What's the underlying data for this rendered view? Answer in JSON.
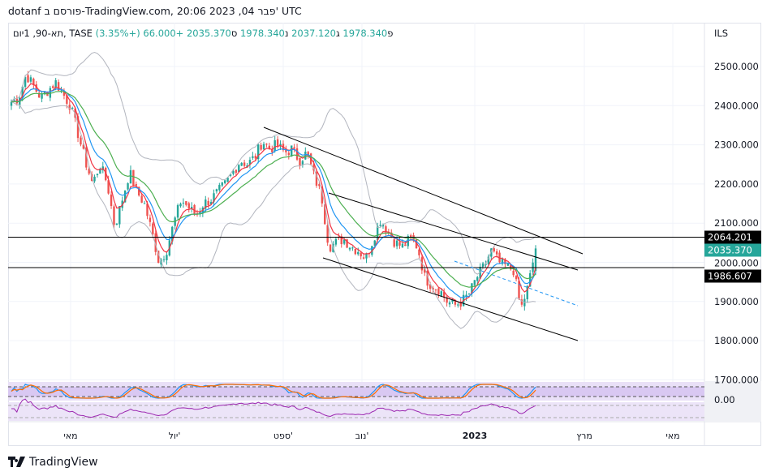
{
  "header": {
    "published": "dotanf פורסם ב-TradingView.com, 20:06 2023 ,04 פבר' UTC"
  },
  "legend": {
    "symbol": "תא-90, 1יום, TASE",
    "open_label": "פ",
    "open": "1978.340",
    "high_label": "ג",
    "high": "2037.120",
    "low_label": "נ",
    "low": "1978.340",
    "close_label": "ס",
    "close": "2035.370",
    "change": "+66.000 (+3.35%)"
  },
  "currency": "ILS",
  "colors": {
    "up": "#26a69a",
    "down": "#ef5350",
    "ema_fast": "#f23645",
    "ema_mid": "#2196f3",
    "ema_slow": "#4caf50",
    "bands": "#b2b5be",
    "stoch_k": "#2196f3",
    "stoch_d": "#ff6d00",
    "rsi": "#9c27b0"
  },
  "chart_data": {
    "type": "candlestick",
    "title": "TA-90, 1D, TASE",
    "ylim": [
      1690,
      2600
    ],
    "y_ticks": [
      "2500.000",
      "2400.000",
      "2300.000",
      "2200.000",
      "2100.000",
      "2000.000",
      "1900.000",
      "1800.000",
      "1700.000"
    ],
    "y_tick_values": [
      2500,
      2400,
      2300,
      2200,
      2100,
      2000,
      1900,
      1800,
      1700
    ],
    "x_ticks": [
      "מאי",
      "יול'",
      "ספט'",
      "נוב'",
      "2023",
      "מרץ",
      "מאי"
    ],
    "close_path": [
      2410,
      2420,
      2480,
      2450,
      2420,
      2440,
      2460,
      2430,
      2400,
      2330,
      2260,
      2200,
      2250,
      2200,
      2090,
      2160,
      2230,
      2180,
      2150,
      2080,
      2000,
      2030,
      2100,
      2160,
      2140,
      2120,
      2150,
      2160,
      2180,
      2200,
      2230,
      2260,
      2250,
      2270,
      2310,
      2290,
      2300,
      2280,
      2290,
      2260,
      2280,
      2220,
      2170,
      2040,
      2050,
      2060,
      2040,
      2030,
      2010,
      2060,
      2110,
      2080,
      2050,
      2040,
      2060,
      2040,
      1960,
      1940,
      1930,
      1900,
      1890,
      1900,
      1920,
      1960,
      1990,
      2030,
      2000,
      1990,
      1980,
      1880,
      1940,
      2035
    ],
    "price_labels": [
      {
        "value": "2064.201",
        "kind": "line"
      },
      {
        "value": "2035.370",
        "kind": "last"
      },
      {
        "value": "1986.607",
        "kind": "line"
      }
    ],
    "horizontal_levels": [
      2064.201,
      1986.607
    ],
    "stoch_label": "0.00"
  },
  "footer": {
    "brand": "TradingView"
  }
}
